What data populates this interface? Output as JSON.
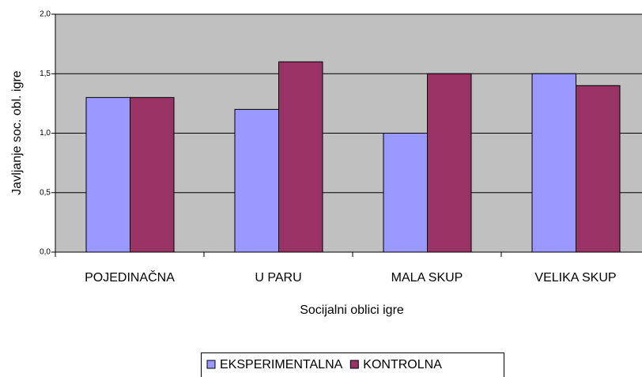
{
  "chart_data": {
    "type": "bar",
    "x_label": "Socijalni oblici igre",
    "y_label": "Javljanje soc. obl. igre",
    "categories": [
      "POJEDINAČNA",
      "U PARU",
      "MALA SKUP",
      "VELIKA SKUP"
    ],
    "series": [
      {
        "name": "EKSPERIMENTALNA",
        "color": "#9999ff",
        "values": [
          1.3,
          1.2,
          1.0,
          1.5
        ]
      },
      {
        "name": "KONTROLNA",
        "color": "#993366",
        "values": [
          1.3,
          1.6,
          1.5,
          1.4
        ]
      }
    ],
    "ylim": [
      0,
      2
    ],
    "yticks": [
      {
        "value": 0,
        "label": "0,0"
      },
      {
        "value": 0.5,
        "label": "0,5"
      },
      {
        "value": 1,
        "label": "1,0"
      },
      {
        "value": 1.5,
        "label": "1,5"
      },
      {
        "value": 2,
        "label": "2,0"
      }
    ],
    "grid": true,
    "legend": "bottom"
  }
}
